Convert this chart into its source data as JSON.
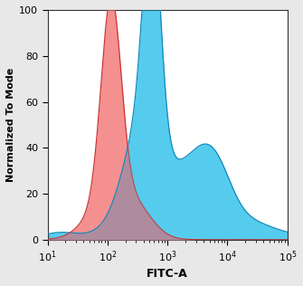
{
  "xlabel": "FITC-A",
  "ylabel": "Normalized To Mode",
  "ylim": [
    0,
    100
  ],
  "yticks": [
    0,
    20,
    40,
    60,
    80,
    100
  ],
  "red_fill_color": "#F49090",
  "red_edge_color": "#CC3333",
  "blue_fill_color": "#55CCEE",
  "blue_edge_color": "#1188BB",
  "overlap_color": "#7788AA",
  "background_color": "#ffffff",
  "fig_background": "#e8e8e8",
  "xlabel_fontsize": 9,
  "ylabel_fontsize": 8,
  "tick_fontsize": 8
}
